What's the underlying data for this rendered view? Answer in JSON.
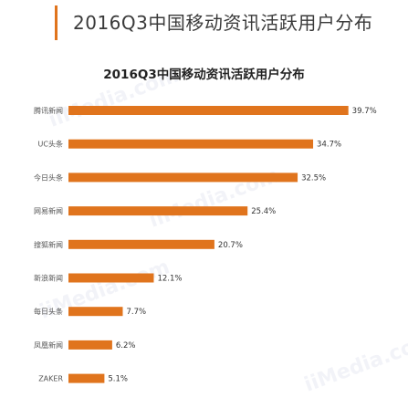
{
  "header": {
    "title": "2016Q3中国移动资讯活跃用户分布"
  },
  "watermark": {
    "text": "iiMedia.com"
  },
  "colors": {
    "bar": "#e0741d",
    "accent": "#e0741d"
  },
  "chart_data": {
    "type": "bar",
    "orientation": "horizontal",
    "title": "2016Q3中国移动资讯活跃用户分布",
    "categories": [
      "腾讯新闻",
      "UC头条",
      "今日头条",
      "网易新闻",
      "搜狐新闻",
      "新浪新闻",
      "每日头条",
      "凤凰新闻",
      "ZAKER"
    ],
    "values": [
      39.7,
      34.7,
      32.5,
      25.4,
      20.7,
      12.1,
      7.7,
      6.2,
      5.1
    ],
    "value_labels": [
      "39.7%",
      "34.7%",
      "32.5%",
      "25.4%",
      "20.7%",
      "12.1%",
      "7.7%",
      "6.2%",
      "5.1%"
    ],
    "unit": "%",
    "xlim": [
      0,
      40
    ],
    "grid": false,
    "legend": "none"
  }
}
